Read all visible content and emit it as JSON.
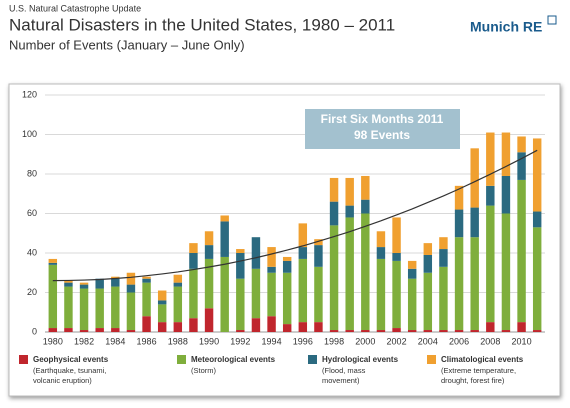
{
  "header": {
    "kicker": "U.S. Natural Catastrophe Update",
    "logo": "Munich RE"
  },
  "chart_data": {
    "type": "stacked-bar",
    "title": "Natural Disasters in the United States, 1980 – 2011",
    "subtitle": "Number of Events (January – June Only)",
    "annotation": [
      "First Six Months 2011",
      "98 Events"
    ],
    "categories": [
      "1980",
      null,
      "1982",
      null,
      "1984",
      null,
      "1986",
      null,
      "1988",
      null,
      "1990",
      null,
      "1992",
      null,
      "1994",
      null,
      "1996",
      null,
      "1998",
      null,
      "2000",
      null,
      "2002",
      null,
      "2004",
      null,
      "2006",
      null,
      "2008",
      null,
      "2010",
      null
    ],
    "series": [
      {
        "name": "Geophysical events",
        "description": [
          "(Earthquake, tsunami,",
          "volcanic eruption)"
        ],
        "color": "#c0262d",
        "values": [
          2,
          2,
          1,
          2,
          2,
          1,
          8,
          5,
          5,
          7,
          12,
          0,
          1,
          7,
          8,
          4,
          5,
          5,
          1,
          1,
          1,
          1,
          2,
          1,
          1,
          1,
          1,
          1,
          5,
          1,
          5,
          1
        ]
      },
      {
        "name": "Meteorological events",
        "description": [
          "(Storm)"
        ],
        "color": "#7fae3c",
        "values": [
          32,
          21,
          21,
          20,
          21,
          19,
          17,
          9,
          18,
          25,
          25,
          38,
          26,
          25,
          22,
          26,
          32,
          28,
          53,
          57,
          59,
          36,
          34,
          26,
          29,
          32,
          47,
          47,
          59,
          59,
          72,
          52
        ]
      },
      {
        "name": "Hydrological events",
        "description": [
          "(Flood, mass",
          "movement)"
        ],
        "color": "#2b6a80",
        "values": [
          1,
          2,
          2,
          5,
          4,
          4,
          2,
          2,
          2,
          8,
          7,
          18,
          13,
          16,
          3,
          6,
          6,
          11,
          12,
          6,
          7,
          6,
          4,
          5,
          9,
          9,
          14,
          15,
          10,
          19,
          14,
          8
        ]
      },
      {
        "name": "Climatological events",
        "description": [
          "(Extreme temperature,",
          "drought, forest fire)"
        ],
        "color": "#f0a030",
        "values": [
          2,
          1,
          1,
          0,
          1,
          6,
          1,
          5,
          4,
          5,
          7,
          3,
          2,
          0,
          10,
          2,
          12,
          3,
          12,
          14,
          12,
          8,
          18,
          4,
          6,
          6,
          12,
          30,
          27,
          22,
          8,
          37
        ]
      }
    ],
    "trend": {
      "color": "#333333",
      "values": [
        26.0,
        26.1,
        26.3,
        26.6,
        27.1,
        27.7,
        28.5,
        29.4,
        30.4,
        31.6,
        32.9,
        34.3,
        35.9,
        37.6,
        39.5,
        41.5,
        43.6,
        45.9,
        48.3,
        50.8,
        53.5,
        56.3,
        59.3,
        62.3,
        65.6,
        68.9,
        72.4,
        76.1,
        79.9,
        83.8,
        87.8,
        92.0
      ]
    },
    "ylim": [
      0,
      120
    ],
    "yticks": [
      0,
      20,
      40,
      60,
      80,
      100,
      120
    ],
    "grid": true
  }
}
